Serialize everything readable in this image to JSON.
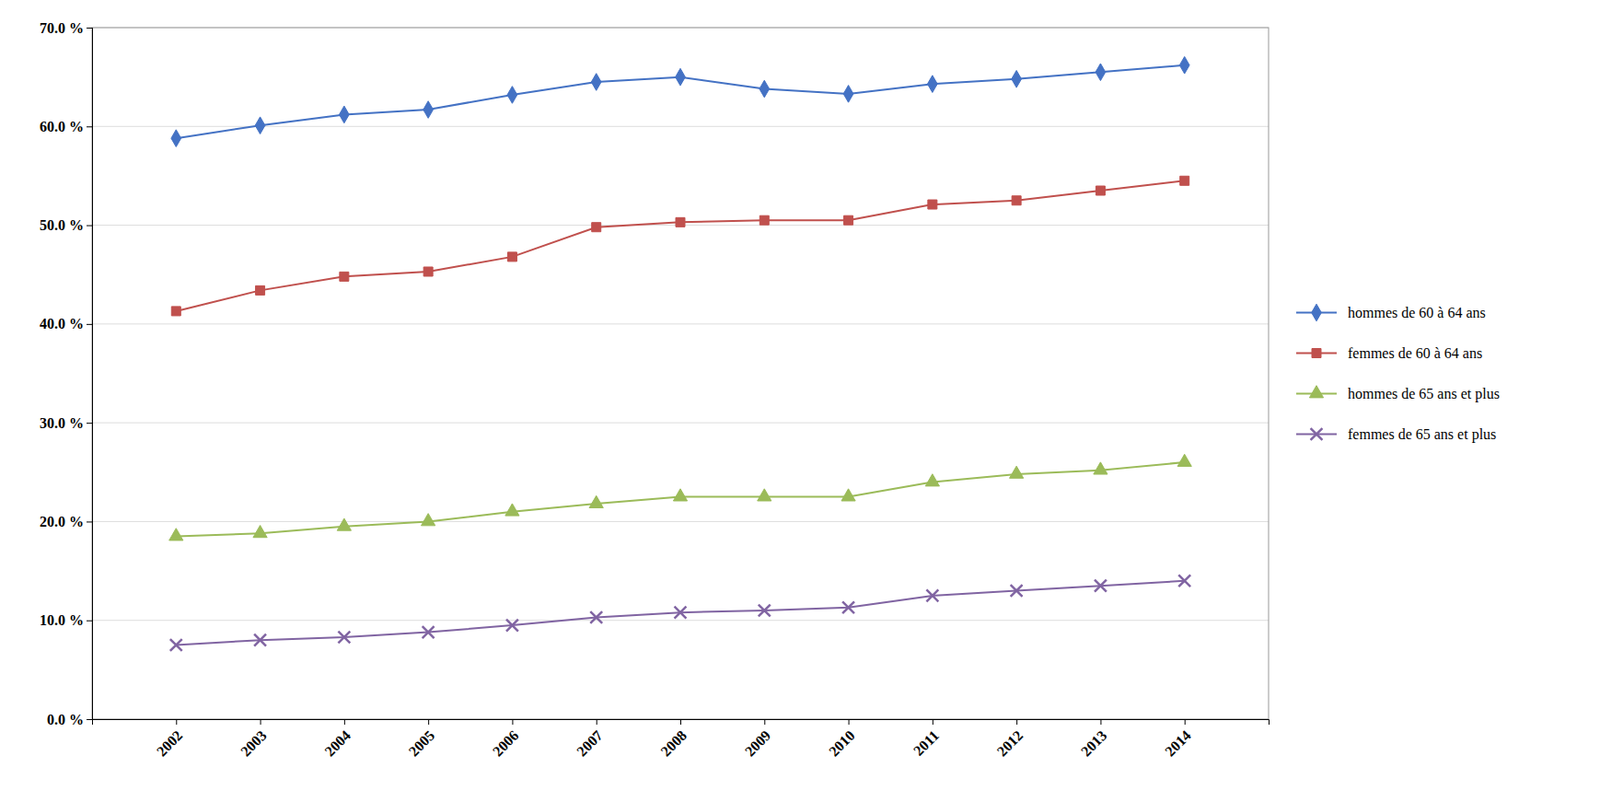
{
  "chart_data": {
    "type": "line",
    "x": [
      2002,
      2003,
      2004,
      2005,
      2006,
      2007,
      2008,
      2009,
      2010,
      2011,
      2012,
      2013,
      2014
    ],
    "series": [
      {
        "name": "hommes de 60 à 64 ans",
        "color": "#4472C4",
        "marker": "diamond",
        "values": [
          58.8,
          60.1,
          61.2,
          61.7,
          63.2,
          64.5,
          65.0,
          63.8,
          63.3,
          64.3,
          64.8,
          65.5,
          66.2
        ]
      },
      {
        "name": "femmes de 60 à 64 ans",
        "color": "#C0504D",
        "marker": "square",
        "values": [
          41.3,
          43.4,
          44.8,
          45.3,
          46.8,
          49.8,
          50.3,
          50.5,
          50.5,
          52.1,
          52.5,
          53.5,
          54.5
        ]
      },
      {
        "name": "hommes de 65 ans et plus",
        "color": "#9BBB59",
        "marker": "triangle",
        "values": [
          18.5,
          18.8,
          19.5,
          20.0,
          21.0,
          21.8,
          22.5,
          22.5,
          22.5,
          24.0,
          24.8,
          25.2,
          26.0
        ]
      },
      {
        "name": "femmes de 65 ans et plus",
        "color": "#8064A2",
        "marker": "x",
        "values": [
          7.5,
          8.0,
          8.3,
          8.8,
          9.5,
          10.3,
          10.8,
          11.0,
          11.3,
          12.5,
          13.0,
          13.5,
          14.0
        ]
      }
    ],
    "xlim": [
      2001,
      2015
    ],
    "xticks": [
      2002,
      2003,
      2004,
      2005,
      2006,
      2007,
      2008,
      2009,
      2010,
      2011,
      2012,
      2013,
      2014
    ],
    "ylim": [
      0.0,
      70.0
    ],
    "yticks": [
      {
        "value": 0.0,
        "label": "0.0 %"
      },
      {
        "value": 10.0,
        "label": "10.0 %"
      },
      {
        "value": 20.0,
        "label": "20.0 %"
      },
      {
        "value": 30.0,
        "label": "30.0 %"
      },
      {
        "value": 40.0,
        "label": "40.0 %"
      },
      {
        "value": 50.0,
        "label": "50.0 %"
      },
      {
        "value": 60.0,
        "label": "60.0 %"
      },
      {
        "value": 70.0,
        "label": "70.0 %"
      }
    ],
    "grid": true,
    "legend": "right"
  }
}
